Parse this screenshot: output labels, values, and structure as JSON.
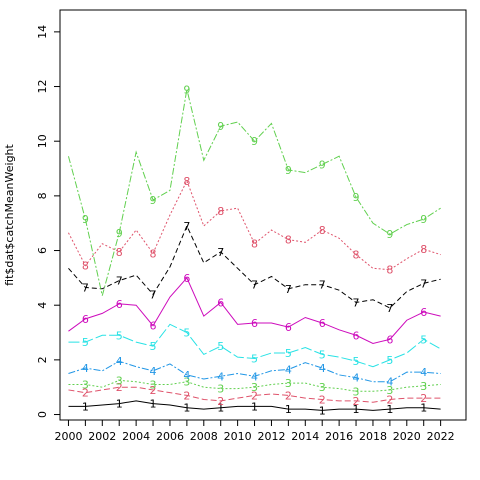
{
  "chart_data": {
    "type": "line",
    "title": "",
    "xlabel": "",
    "ylabel": "fit$dat$catchMeanWeight",
    "xlim": [
      1999.5,
      2023.5
    ],
    "ylim": [
      -0.2,
      14.8
    ],
    "x_ticks": [
      2000,
      2002,
      2004,
      2006,
      2008,
      2010,
      2012,
      2014,
      2016,
      2018,
      2020,
      2022
    ],
    "y_ticks": [
      0,
      2,
      4,
      6,
      8,
      10,
      12,
      14
    ],
    "x": [
      2000,
      2001,
      2002,
      2003,
      2004,
      2005,
      2006,
      2007,
      2008,
      2009,
      2010,
      2011,
      2012,
      2013,
      2014,
      2015,
      2016,
      2017,
      2018,
      2019,
      2020,
      2021,
      2022
    ],
    "series": [
      {
        "label": "1",
        "color": "#000000",
        "dash": "",
        "values": [
          0.3,
          0.3,
          0.35,
          0.4,
          0.5,
          0.4,
          0.35,
          0.25,
          0.2,
          0.25,
          0.3,
          0.3,
          0.3,
          0.2,
          0.2,
          0.15,
          0.2,
          0.2,
          0.15,
          0.2,
          0.25,
          0.25,
          0.2
        ]
      },
      {
        "label": "2",
        "color": "#DF536B",
        "dash": "6,3",
        "values": [
          0.9,
          0.8,
          0.9,
          1.0,
          1.0,
          0.9,
          0.8,
          0.7,
          0.55,
          0.5,
          0.6,
          0.7,
          0.75,
          0.7,
          0.6,
          0.55,
          0.5,
          0.5,
          0.45,
          0.55,
          0.6,
          0.6,
          0.6
        ]
      },
      {
        "label": "3",
        "color": "#61D04F",
        "dash": "2,2",
        "values": [
          1.1,
          1.1,
          1.0,
          1.25,
          1.2,
          1.1,
          1.1,
          1.2,
          1.0,
          0.95,
          0.95,
          1.0,
          1.1,
          1.15,
          1.15,
          1.0,
          0.95,
          0.85,
          0.85,
          0.9,
          1.0,
          1.05,
          1.1
        ]
      },
      {
        "label": "4",
        "color": "#2297E6",
        "dash": "7,2,2,2",
        "values": [
          1.5,
          1.7,
          1.6,
          1.95,
          1.75,
          1.6,
          1.85,
          1.45,
          1.3,
          1.4,
          1.5,
          1.4,
          1.6,
          1.65,
          1.9,
          1.7,
          1.45,
          1.35,
          1.2,
          1.2,
          1.55,
          1.55,
          1.5
        ]
      },
      {
        "label": "5",
        "color": "#28E2E5",
        "dash": "11,3",
        "values": [
          2.65,
          2.65,
          2.9,
          2.9,
          2.65,
          2.5,
          3.3,
          3.0,
          2.2,
          2.5,
          2.1,
          2.05,
          2.25,
          2.25,
          2.45,
          2.2,
          2.1,
          1.95,
          1.75,
          2.0,
          2.25,
          2.75,
          2.4
        ]
      },
      {
        "label": "6",
        "color": "#CD0BBC",
        "dash": "",
        "values": [
          3.05,
          3.5,
          3.7,
          4.05,
          4.0,
          3.25,
          4.3,
          5.0,
          3.6,
          4.1,
          3.3,
          3.35,
          3.35,
          3.2,
          3.55,
          3.35,
          3.1,
          2.9,
          2.6,
          2.75,
          3.45,
          3.75,
          3.6
        ]
      },
      {
        "label": "7",
        "color": "#000000",
        "dash": "5,3",
        "values": [
          5.35,
          4.65,
          4.6,
          4.9,
          5.1,
          4.4,
          5.4,
          6.9,
          5.55,
          5.95,
          5.35,
          4.75,
          5.05,
          4.6,
          4.75,
          4.75,
          4.55,
          4.1,
          4.2,
          3.9,
          4.5,
          4.8,
          4.95
        ]
      },
      {
        "label": "8",
        "color": "#DF536B",
        "dash": "2,2",
        "values": [
          6.65,
          5.45,
          6.25,
          5.95,
          6.75,
          5.9,
          7.3,
          8.55,
          6.9,
          7.45,
          7.55,
          6.25,
          6.75,
          6.4,
          6.3,
          6.75,
          6.45,
          5.85,
          5.35,
          5.3,
          5.7,
          6.05,
          5.85
        ]
      },
      {
        "label": "9",
        "color": "#61D04F",
        "dash": "7,2,2,2",
        "values": [
          9.45,
          7.15,
          4.35,
          6.65,
          9.6,
          7.85,
          8.2,
          11.9,
          9.3,
          10.55,
          10.7,
          10.0,
          10.65,
          8.95,
          8.85,
          9.15,
          9.45,
          7.95,
          7.0,
          6.6,
          6.95,
          7.15,
          7.55
        ]
      }
    ]
  }
}
